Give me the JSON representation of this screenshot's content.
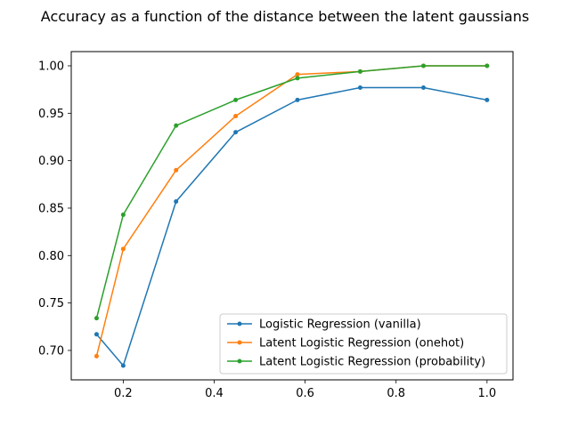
{
  "chart_data": {
    "type": "line",
    "title": "Accuracy as a function of the distance between the latent gaussians",
    "xlabel": "",
    "ylabel": "",
    "xlim": [
      0.0857,
      1.0571
    ],
    "ylim": [
      0.669,
      1.015
    ],
    "x_ticks": [
      0.2,
      0.4,
      0.6,
      0.8,
      1.0
    ],
    "x_tick_labels": [
      "0.2",
      "0.4",
      "0.6",
      "0.8",
      "1.0"
    ],
    "y_ticks": [
      0.7,
      0.75,
      0.8,
      0.85,
      0.9,
      0.95,
      1.0
    ],
    "y_tick_labels": [
      "0.70",
      "0.75",
      "0.80",
      "0.85",
      "0.90",
      "0.95",
      "1.00"
    ],
    "grid": false,
    "legend_position": "lower-right",
    "x": [
      0.1414,
      0.2,
      0.3162,
      0.4472,
      0.5831,
      0.7211,
      0.8602,
      1.0
    ],
    "series": [
      {
        "name": "Logistic Regression (vanilla)",
        "color": "#1f77b4",
        "values": [
          0.717,
          0.684,
          0.857,
          0.93,
          0.964,
          0.977,
          0.977,
          0.964
        ]
      },
      {
        "name": "Latent Logistic Regression (onehot)",
        "color": "#ff7f0e",
        "values": [
          0.694,
          0.807,
          0.89,
          0.947,
          0.991,
          0.994,
          1.0,
          1.0
        ]
      },
      {
        "name": "Latent Logistic Regression (probability)",
        "color": "#2ca02c",
        "values": [
          0.734,
          0.843,
          0.937,
          0.964,
          0.987,
          0.994,
          1.0,
          1.0
        ]
      }
    ]
  }
}
